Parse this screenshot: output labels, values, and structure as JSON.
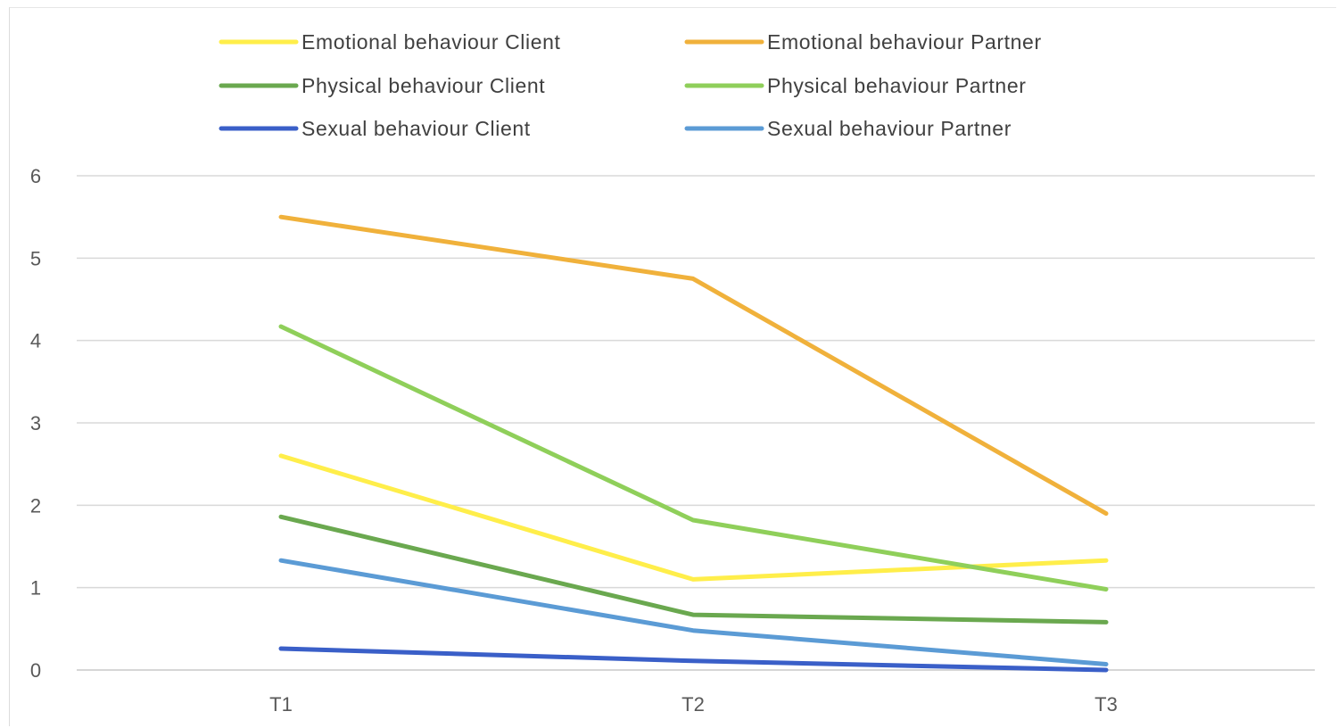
{
  "chart_data": {
    "type": "line",
    "title": "",
    "xlabel": "",
    "ylabel": "",
    "categories": [
      "T1",
      "T2",
      "T3"
    ],
    "ylim": [
      0,
      6
    ],
    "yticks": [
      "0",
      "1",
      "2",
      "3",
      "4",
      "5",
      "6"
    ],
    "grid": true,
    "legend_position": "top",
    "series": [
      {
        "name": "Emotional behaviour Client",
        "color": "#ffee4a",
        "values": [
          2.6,
          1.1,
          1.33
        ]
      },
      {
        "name": "Emotional behaviour Partner",
        "color": "#f0b13b",
        "values": [
          5.5,
          4.75,
          1.9
        ]
      },
      {
        "name": "Physical behaviour Client",
        "color": "#6aa84f",
        "values": [
          1.86,
          0.67,
          0.58
        ]
      },
      {
        "name": "Physical behaviour Partner",
        "color": "#8fcf5a",
        "values": [
          4.17,
          1.82,
          0.98
        ]
      },
      {
        "name": "Sexual behaviour Client",
        "color": "#3a5fc8",
        "values": [
          0.26,
          0.11,
          0.0
        ]
      },
      {
        "name": "Sexual behaviour Partner",
        "color": "#5b9bd5",
        "values": [
          1.33,
          0.48,
          0.07
        ]
      }
    ]
  }
}
